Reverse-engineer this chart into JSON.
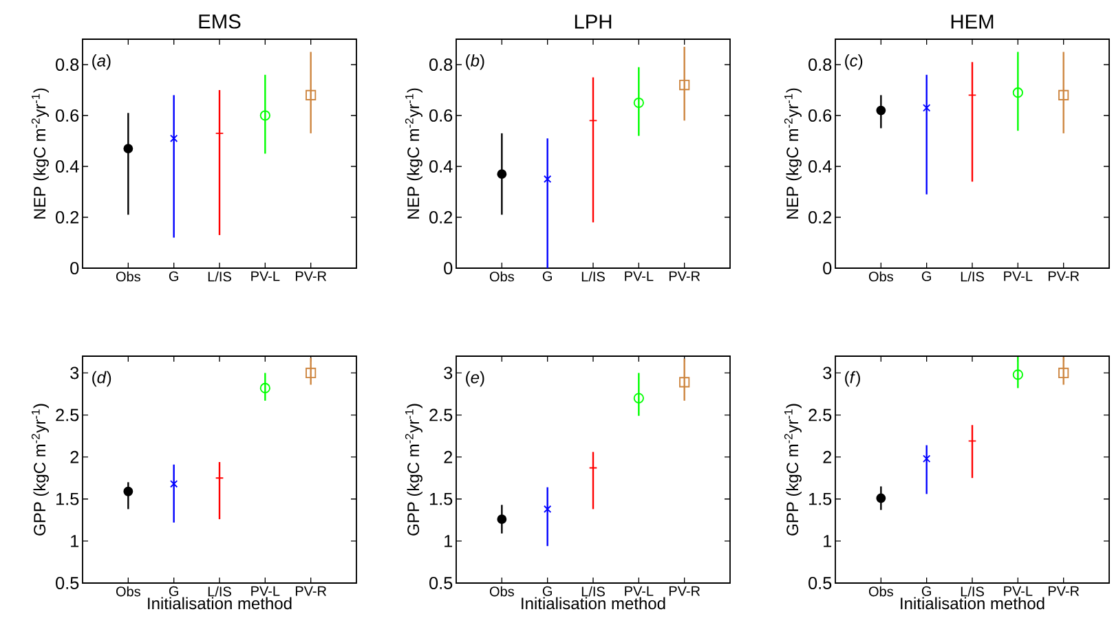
{
  "chart_data": [
    {
      "type": "scatter",
      "title": "EMS",
      "ylabel": "NEP (kgC m$^{-2}$yr$^{-1}$)",
      "annotations": [
        "(*a*)"
      ],
      "categories": [
        "Obs",
        "G",
        "L/IS",
        "PV-L",
        "PV-R"
      ],
      "ylim": [
        0,
        0.9
      ],
      "yticks": [
        0,
        0.2,
        0.4,
        0.6,
        0.8
      ],
      "series": [
        {
          "values": [
            0.47,
            null,
            null,
            null,
            null
          ],
          "errors": [
            [
              0.21,
              0.61
            ],
            null,
            null,
            null,
            null
          ],
          "color": "#000000",
          "marker": "dot"
        },
        {
          "values": [
            null,
            0.51,
            null,
            null,
            null
          ],
          "errors": [
            null,
            [
              0.12,
              0.68
            ],
            null,
            null,
            null
          ],
          "color": "#0000ff",
          "marker": "cross"
        },
        {
          "values": [
            null,
            null,
            0.53,
            null,
            null
          ],
          "errors": [
            null,
            null,
            [
              0.13,
              0.7
            ],
            null,
            null
          ],
          "color": "#ff0000",
          "marker": "plus"
        },
        {
          "values": [
            null,
            null,
            null,
            0.6,
            null
          ],
          "errors": [
            null,
            null,
            null,
            [
              0.45,
              0.76
            ],
            null
          ],
          "color": "#00ff00",
          "marker": "circle"
        },
        {
          "values": [
            null,
            null,
            null,
            null,
            0.68
          ],
          "errors": [
            null,
            null,
            null,
            null,
            [
              0.53,
              0.85
            ]
          ],
          "color": "#cd853f",
          "marker": "square"
        }
      ]
    },
    {
      "type": "scatter",
      "title": "LPH",
      "ylabel": "NEP (kgC m$^{-2}$yr$^{-1}$)",
      "annotations": [
        "(*b*)"
      ],
      "categories": [
        "Obs",
        "G",
        "L/IS",
        "PV-L",
        "PV-R"
      ],
      "ylim": [
        0,
        0.9
      ],
      "yticks": [
        0,
        0.2,
        0.4,
        0.6,
        0.8
      ],
      "series": [
        {
          "values": [
            0.37,
            null,
            null,
            null,
            null
          ],
          "errors": [
            [
              0.21,
              0.53
            ],
            null,
            null,
            null,
            null
          ],
          "color": "#000000",
          "marker": "dot"
        },
        {
          "values": [
            null,
            0.35,
            null,
            null,
            null
          ],
          "errors": [
            null,
            [
              0.0,
              0.51
            ],
            null,
            null,
            null
          ],
          "color": "#0000ff",
          "marker": "cross"
        },
        {
          "values": [
            null,
            null,
            0.58,
            null,
            null
          ],
          "errors": [
            null,
            null,
            [
              0.18,
              0.75
            ],
            null,
            null
          ],
          "color": "#ff0000",
          "marker": "plus"
        },
        {
          "values": [
            null,
            null,
            null,
            0.65,
            null
          ],
          "errors": [
            null,
            null,
            null,
            [
              0.52,
              0.79
            ],
            null
          ],
          "color": "#00ff00",
          "marker": "circle"
        },
        {
          "values": [
            null,
            null,
            null,
            null,
            0.72
          ],
          "errors": [
            null,
            null,
            null,
            null,
            [
              0.58,
              0.87
            ]
          ],
          "color": "#cd853f",
          "marker": "square"
        }
      ]
    },
    {
      "type": "scatter",
      "title": "HEM",
      "ylabel": "NEP (kgC m$^{-2}$yr$^{-1}$)",
      "annotations": [
        "(*c*)"
      ],
      "categories": [
        "Obs",
        "G",
        "L/IS",
        "PV-L",
        "PV-R"
      ],
      "ylim": [
        0,
        0.9
      ],
      "yticks": [
        0,
        0.2,
        0.4,
        0.6,
        0.8
      ],
      "series": [
        {
          "values": [
            0.62,
            null,
            null,
            null,
            null
          ],
          "errors": [
            [
              0.55,
              0.68
            ],
            null,
            null,
            null,
            null
          ],
          "color": "#000000",
          "marker": "dot"
        },
        {
          "values": [
            null,
            0.63,
            null,
            null,
            null
          ],
          "errors": [
            null,
            [
              0.29,
              0.76
            ],
            null,
            null,
            null
          ],
          "color": "#0000ff",
          "marker": "cross"
        },
        {
          "values": [
            null,
            null,
            0.68,
            null,
            null
          ],
          "errors": [
            null,
            null,
            [
              0.34,
              0.81
            ],
            null,
            null
          ],
          "color": "#ff0000",
          "marker": "plus"
        },
        {
          "values": [
            null,
            null,
            null,
            0.69,
            null
          ],
          "errors": [
            null,
            null,
            null,
            [
              0.54,
              0.85
            ],
            null
          ],
          "color": "#00ff00",
          "marker": "circle"
        },
        {
          "values": [
            null,
            null,
            null,
            null,
            0.68
          ],
          "errors": [
            null,
            null,
            null,
            null,
            [
              0.53,
              0.85
            ]
          ],
          "color": "#cd853f",
          "marker": "square"
        }
      ]
    },
    {
      "type": "scatter",
      "xlabel": "Initialisation method",
      "ylabel": "GPP (kgC m$^{-2}$yr$^{-1}$)",
      "annotations": [
        "(*d*)"
      ],
      "categories": [
        "Obs",
        "G",
        "L/IS",
        "PV-L",
        "PV-R"
      ],
      "ylim": [
        0.5,
        3.2
      ],
      "yticks": [
        0.5,
        1,
        1.5,
        2,
        2.5,
        3
      ],
      "series": [
        {
          "values": [
            1.59,
            null,
            null,
            null,
            null
          ],
          "errors": [
            [
              1.38,
              1.7
            ],
            null,
            null,
            null,
            null
          ],
          "color": "#000000",
          "marker": "dot"
        },
        {
          "values": [
            null,
            1.68,
            null,
            null,
            null
          ],
          "errors": [
            null,
            [
              1.22,
              1.91
            ],
            null,
            null,
            null
          ],
          "color": "#0000ff",
          "marker": "cross"
        },
        {
          "values": [
            null,
            null,
            1.75,
            null,
            null
          ],
          "errors": [
            null,
            null,
            [
              1.26,
              1.94
            ],
            null,
            null
          ],
          "color": "#ff0000",
          "marker": "plus"
        },
        {
          "values": [
            null,
            null,
            null,
            2.82,
            null
          ],
          "errors": [
            null,
            null,
            null,
            [
              2.67,
              3.0
            ],
            null
          ],
          "color": "#00ff00",
          "marker": "circle"
        },
        {
          "values": [
            null,
            null,
            null,
            null,
            3.0
          ],
          "errors": [
            null,
            null,
            null,
            null,
            [
              2.86,
              3.18
            ]
          ],
          "color": "#cd853f",
          "marker": "square"
        }
      ]
    },
    {
      "type": "scatter",
      "xlabel": "Initialisation method",
      "ylabel": "GPP (kgC m$^{-2}$yr$^{-1}$)",
      "annotations": [
        "(*e*)"
      ],
      "categories": [
        "Obs",
        "G",
        "L/IS",
        "PV-L",
        "PV-R"
      ],
      "ylim": [
        0.5,
        3.2
      ],
      "yticks": [
        0.5,
        1,
        1.5,
        2,
        2.5,
        3
      ],
      "series": [
        {
          "values": [
            1.26,
            null,
            null,
            null,
            null
          ],
          "errors": [
            [
              1.09,
              1.43
            ],
            null,
            null,
            null,
            null
          ],
          "color": "#000000",
          "marker": "dot"
        },
        {
          "values": [
            null,
            1.38,
            null,
            null,
            null
          ],
          "errors": [
            null,
            [
              0.94,
              1.64
            ],
            null,
            null,
            null
          ],
          "color": "#0000ff",
          "marker": "cross"
        },
        {
          "values": [
            null,
            null,
            1.87,
            null,
            null
          ],
          "errors": [
            null,
            null,
            [
              1.38,
              2.06
            ],
            null,
            null
          ],
          "color": "#ff0000",
          "marker": "plus"
        },
        {
          "values": [
            null,
            null,
            null,
            2.7,
            null
          ],
          "errors": [
            null,
            null,
            null,
            [
              2.49,
              3.0
            ],
            null
          ],
          "color": "#00ff00",
          "marker": "circle"
        },
        {
          "values": [
            null,
            null,
            null,
            null,
            2.89
          ],
          "errors": [
            null,
            null,
            null,
            null,
            [
              2.67,
              3.17
            ]
          ],
          "color": "#cd853f",
          "marker": "square"
        }
      ]
    },
    {
      "type": "scatter",
      "xlabel": "Initialisation method",
      "ylabel": "GPP (kgC m$^{-2}$yr$^{-1}$)",
      "annotations": [
        "(*f*)"
      ],
      "categories": [
        "Obs",
        "G",
        "L/IS",
        "PV-L",
        "PV-R"
      ],
      "ylim": [
        0.5,
        3.2
      ],
      "yticks": [
        0.5,
        1,
        1.5,
        2,
        2.5,
        3
      ],
      "series": [
        {
          "values": [
            1.51,
            null,
            null,
            null,
            null
          ],
          "errors": [
            [
              1.37,
              1.65
            ],
            null,
            null,
            null,
            null
          ],
          "color": "#000000",
          "marker": "dot"
        },
        {
          "values": [
            null,
            1.98,
            null,
            null,
            null
          ],
          "errors": [
            null,
            [
              1.56,
              2.14
            ],
            null,
            null,
            null
          ],
          "color": "#0000ff",
          "marker": "cross"
        },
        {
          "values": [
            null,
            null,
            2.19,
            null,
            null
          ],
          "errors": [
            null,
            null,
            [
              1.75,
              2.38
            ],
            null,
            null
          ],
          "color": "#ff0000",
          "marker": "plus"
        },
        {
          "values": [
            null,
            null,
            null,
            2.98,
            null
          ],
          "errors": [
            null,
            null,
            null,
            [
              2.82,
              3.19
            ],
            null
          ],
          "color": "#00ff00",
          "marker": "circle"
        },
        {
          "values": [
            null,
            null,
            null,
            null,
            3.0
          ],
          "errors": [
            null,
            null,
            null,
            null,
            [
              2.86,
              3.19
            ]
          ],
          "color": "#cd853f",
          "marker": "square"
        }
      ]
    }
  ]
}
